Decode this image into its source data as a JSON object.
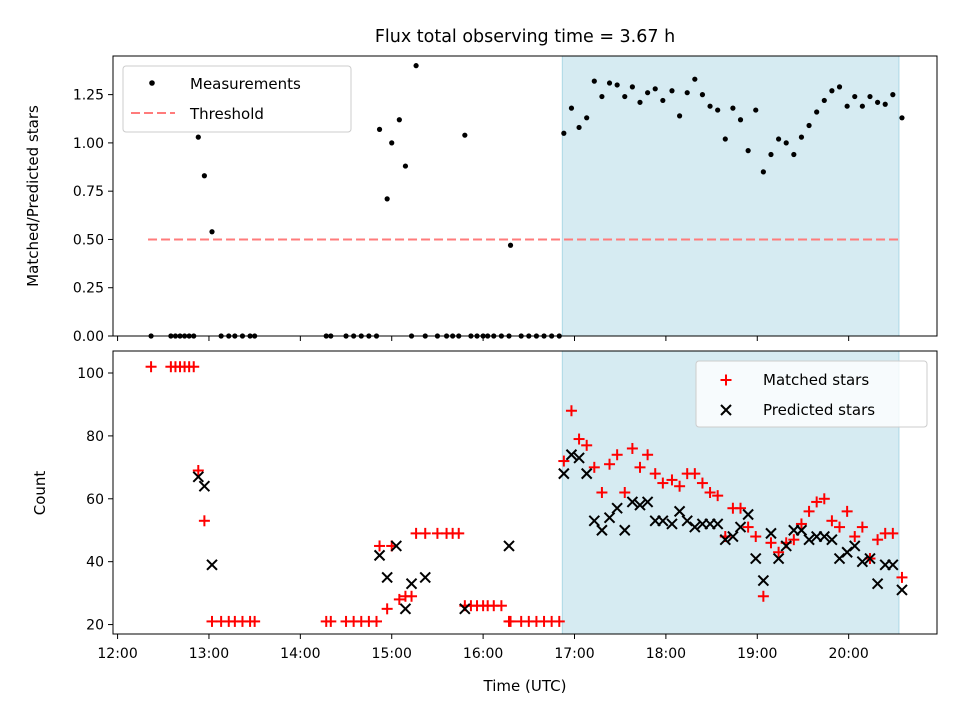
{
  "title": "Flux total observing time = 3.67 h",
  "colors": {
    "measurement": "#000000",
    "threshold": "#ff7b7b",
    "matched": "#ff0000",
    "predicted": "#000000",
    "highlight": "#add8e6"
  },
  "chart_data": [
    {
      "type": "scatter",
      "ylabel": "Matched/Predicted stars",
      "ylim": [
        0,
        1.45
      ],
      "xlim": [
        "11:57",
        "20:58"
      ],
      "yticks": [
        "0.00",
        "0.25",
        "0.50",
        "0.75",
        "1.00",
        "1.25"
      ],
      "yticks_values": [
        0,
        0.25,
        0.5,
        0.75,
        1.0,
        1.25
      ],
      "grid": false,
      "legend_position": "top-left",
      "highlight_span": [
        "16:52",
        "20:33"
      ],
      "threshold": {
        "name": "Threshold",
        "y": 0.5,
        "x_range": [
          "12:20",
          "20:33"
        ]
      },
      "series": [
        {
          "name": "Measurements",
          "x": [
            "12:22",
            "12:35",
            "12:38",
            "12:41",
            "12:44",
            "12:47",
            "12:50",
            "12:53",
            "12:57",
            "13:02",
            "13:08",
            "13:13",
            "13:17",
            "13:22",
            "13:27",
            "13:30",
            "14:17",
            "14:20",
            "14:30",
            "14:35",
            "14:40",
            "14:45",
            "14:50",
            "14:52",
            "14:57",
            "15:00",
            "15:05",
            "15:09",
            "15:13",
            "15:16",
            "15:22",
            "15:30",
            "15:36",
            "15:40",
            "15:44",
            "15:48",
            "15:52",
            "15:56",
            "16:00",
            "16:03",
            "16:07",
            "16:12",
            "16:17",
            "16:18",
            "16:25",
            "16:30",
            "16:35",
            "16:40",
            "16:45",
            "16:50",
            "16:53",
            "16:58",
            "17:03",
            "17:08",
            "17:13",
            "17:18",
            "17:23",
            "17:28",
            "17:33",
            "17:38",
            "17:43",
            "17:48",
            "17:53",
            "17:58",
            "18:04",
            "18:09",
            "18:14",
            "18:19",
            "18:24",
            "18:29",
            "18:34",
            "18:39",
            "18:44",
            "18:49",
            "18:54",
            "18:59",
            "19:04",
            "19:09",
            "19:14",
            "19:19",
            "19:24",
            "19:29",
            "19:34",
            "19:39",
            "19:44",
            "19:49",
            "19:54",
            "19:59",
            "20:04",
            "20:09",
            "20:14",
            "20:19",
            "20:24",
            "20:29",
            "20:35"
          ],
          "y": [
            0,
            0,
            0,
            0,
            0,
            0,
            0,
            1.03,
            0.83,
            0.54,
            0,
            0,
            0,
            0,
            0,
            0,
            0,
            0,
            0,
            0,
            0,
            0,
            0,
            1.07,
            0.71,
            1.0,
            1.12,
            0.88,
            0,
            1.4,
            0,
            0,
            0,
            0,
            0,
            1.04,
            0,
            0,
            0,
            0,
            0,
            0,
            0,
            0.47,
            0,
            0,
            0,
            0,
            0,
            0,
            1.05,
            1.18,
            1.08,
            1.13,
            1.32,
            1.24,
            1.31,
            1.3,
            1.24,
            1.29,
            1.21,
            1.26,
            1.28,
            1.22,
            1.27,
            1.14,
            1.26,
            1.33,
            1.25,
            1.19,
            1.17,
            1.02,
            1.18,
            1.12,
            0.96,
            1.17,
            0.85,
            0.94,
            1.02,
            1.0,
            0.94,
            1.03,
            1.09,
            1.16,
            1.22,
            1.27,
            1.29,
            1.19,
            1.24,
            1.19,
            1.24,
            1.21,
            1.2,
            1.25,
            1.13
          ]
        }
      ]
    },
    {
      "type": "scatter",
      "xlabel": "Time (UTC)",
      "ylabel": "Count",
      "ylim": [
        17,
        107
      ],
      "xlim": [
        "11:57",
        "20:58"
      ],
      "xticks": [
        "12:00",
        "13:00",
        "14:00",
        "15:00",
        "16:00",
        "17:00",
        "18:00",
        "19:00",
        "20:00"
      ],
      "yticks": [
        "20",
        "40",
        "60",
        "80",
        "100"
      ],
      "yticks_values": [
        20,
        40,
        60,
        80,
        100
      ],
      "grid": false,
      "legend_position": "top-right",
      "highlight_span": [
        "16:52",
        "20:33"
      ],
      "series": [
        {
          "name": "Matched stars",
          "marker": "plus",
          "x": [
            "12:22",
            "12:35",
            "12:38",
            "12:41",
            "12:44",
            "12:47",
            "12:50",
            "12:53",
            "12:57",
            "13:02",
            "13:08",
            "13:13",
            "13:17",
            "13:22",
            "13:27",
            "13:30",
            "14:17",
            "14:20",
            "14:30",
            "14:35",
            "14:40",
            "14:45",
            "14:50",
            "14:52",
            "14:57",
            "15:00",
            "15:05",
            "15:09",
            "15:13",
            "15:16",
            "15:22",
            "15:30",
            "15:36",
            "15:40",
            "15:44",
            "15:48",
            "15:52",
            "15:56",
            "16:00",
            "16:03",
            "16:07",
            "16:12",
            "16:17",
            "16:18",
            "16:25",
            "16:30",
            "16:35",
            "16:40",
            "16:45",
            "16:50",
            "16:53",
            "16:58",
            "17:03",
            "17:08",
            "17:13",
            "17:18",
            "17:23",
            "17:28",
            "17:33",
            "17:38",
            "17:43",
            "17:48",
            "17:53",
            "17:58",
            "18:04",
            "18:09",
            "18:14",
            "18:19",
            "18:24",
            "18:29",
            "18:34",
            "18:39",
            "18:44",
            "18:49",
            "18:54",
            "18:59",
            "19:04",
            "19:09",
            "19:14",
            "19:19",
            "19:24",
            "19:29",
            "19:34",
            "19:39",
            "19:44",
            "19:49",
            "19:54",
            "19:59",
            "20:04",
            "20:09",
            "20:14",
            "20:19",
            "20:24",
            "20:29",
            "20:35"
          ],
          "y": [
            102,
            102,
            102,
            102,
            102,
            102,
            102,
            69,
            53,
            21,
            21,
            21,
            21,
            21,
            21,
            21,
            21,
            21,
            21,
            21,
            21,
            21,
            21,
            45,
            25,
            45,
            28,
            29,
            29,
            49,
            49,
            49,
            49,
            49,
            49,
            26,
            26,
            26,
            26,
            26,
            26,
            26,
            21,
            21,
            21,
            21,
            21,
            21,
            21,
            21,
            72,
            88,
            79,
            77,
            70,
            62,
            71,
            74,
            62,
            76,
            70,
            74,
            68,
            65,
            66,
            64,
            68,
            68,
            65,
            62,
            61,
            48,
            57,
            57,
            51,
            48,
            29,
            46,
            43,
            46,
            47,
            52,
            56,
            59,
            60,
            53,
            51,
            56,
            48,
            51,
            41,
            47,
            49,
            49,
            35
          ]
        },
        {
          "name": "Predicted stars",
          "marker": "x",
          "x": [
            "12:53",
            "12:57",
            "13:02",
            "14:52",
            "14:57",
            "15:03",
            "15:09",
            "15:13",
            "15:22",
            "15:48",
            "16:17",
            "16:53",
            "16:58",
            "17:03",
            "17:08",
            "17:13",
            "17:18",
            "17:23",
            "17:28",
            "17:33",
            "17:38",
            "17:43",
            "17:48",
            "17:53",
            "17:58",
            "18:04",
            "18:09",
            "18:14",
            "18:19",
            "18:24",
            "18:29",
            "18:34",
            "18:39",
            "18:44",
            "18:49",
            "18:54",
            "18:59",
            "19:04",
            "19:09",
            "19:14",
            "19:19",
            "19:24",
            "19:29",
            "19:34",
            "19:39",
            "19:44",
            "19:49",
            "19:54",
            "19:59",
            "20:04",
            "20:09",
            "20:14",
            "20:19",
            "20:24",
            "20:29",
            "20:35"
          ],
          "y": [
            67,
            64,
            39,
            42,
            35,
            45,
            25,
            33,
            35,
            25,
            45,
            68,
            74,
            73,
            68,
            53,
            50,
            54,
            57,
            50,
            59,
            58,
            59,
            53,
            53,
            52,
            56,
            53,
            51,
            52,
            52,
            52,
            47,
            48,
            51,
            55,
            41,
            34,
            49,
            41,
            45,
            50,
            50,
            47,
            48,
            48,
            47,
            41,
            43,
            45,
            40,
            41,
            33,
            39,
            39,
            31
          ]
        }
      ]
    }
  ]
}
